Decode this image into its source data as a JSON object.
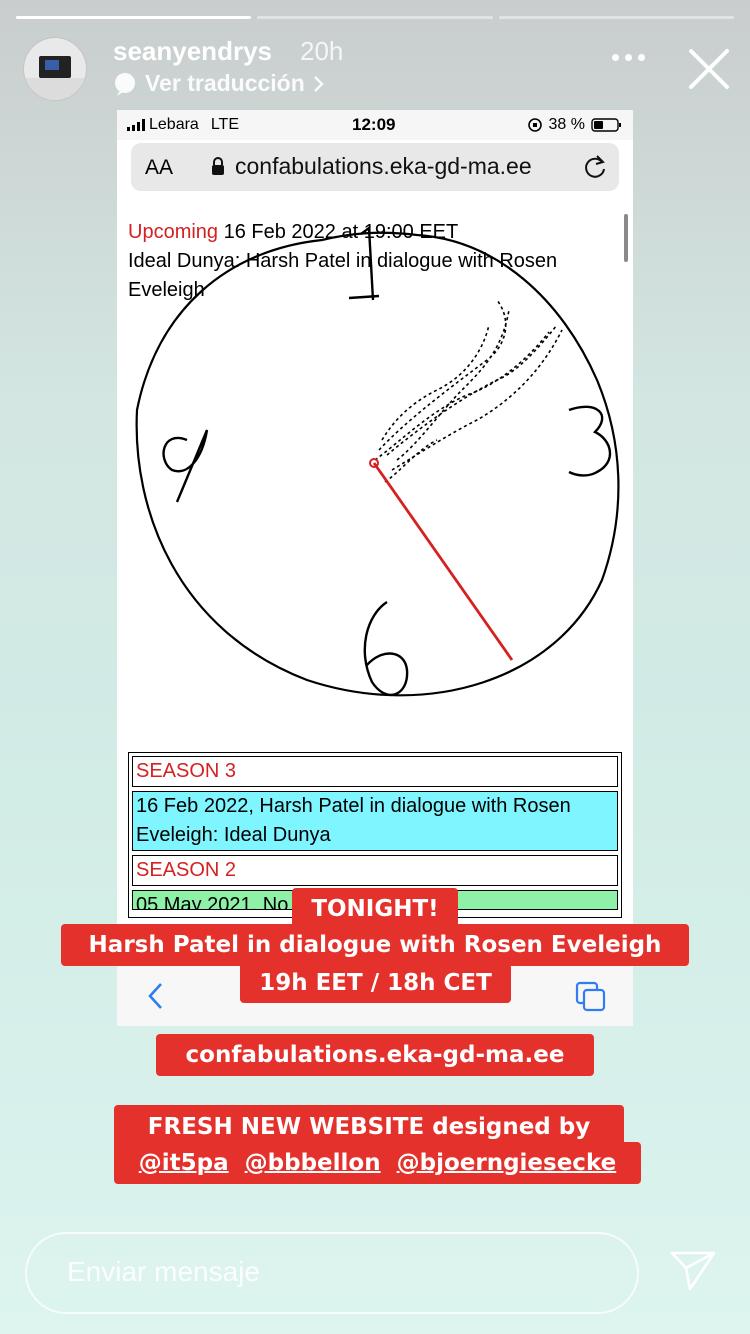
{
  "story": {
    "progress_segments": 3,
    "active_segment": 0,
    "username": "seanyendrys",
    "time_ago": "20h",
    "translate_label": "Ver traducción",
    "message_placeholder": "Enviar mensaje"
  },
  "phone": {
    "carrier": "Lebara",
    "network": "LTE",
    "clock": "12:09",
    "battery": "38 %",
    "reader_label": "AA",
    "url": "confabulations.eka-gd-ma.ee"
  },
  "page": {
    "upcoming_label": "Upcoming",
    "upcoming_date": "16 Feb 2022 at 19:00 EET",
    "upcoming_title": "Ideal Dunya: Harsh Patel in dialogue with Rosen Eveleigh",
    "clock_numbers": [
      "1",
      "3",
      "6",
      "9"
    ],
    "season3_label": "SEASON 3",
    "season3_item": "16 Feb 2022, Harsh Patel in dialogue with Rosen Eveleigh: Ideal Dunya",
    "season2_label": "SEASON 2",
    "season2_item_partial": "05 May 2021, No"
  },
  "stickers": {
    "tonight": "TONIGHT!",
    "headline": "Harsh Patel in dialogue with Rosen Eveleigh",
    "time": "19h EET / 18h CET",
    "url": "confabulations.eka-gd-ma.ee",
    "fresh": "FRESH NEW WEBSITE designed by",
    "handles": [
      "@it5pa",
      "@bbbellon",
      "@bjoerngiesecke"
    ]
  },
  "colors": {
    "sticker_red": "#e5312c",
    "site_red": "#d42121",
    "season3_cell": "#7ff5ff",
    "season2_cell": "#8ff0a8"
  }
}
